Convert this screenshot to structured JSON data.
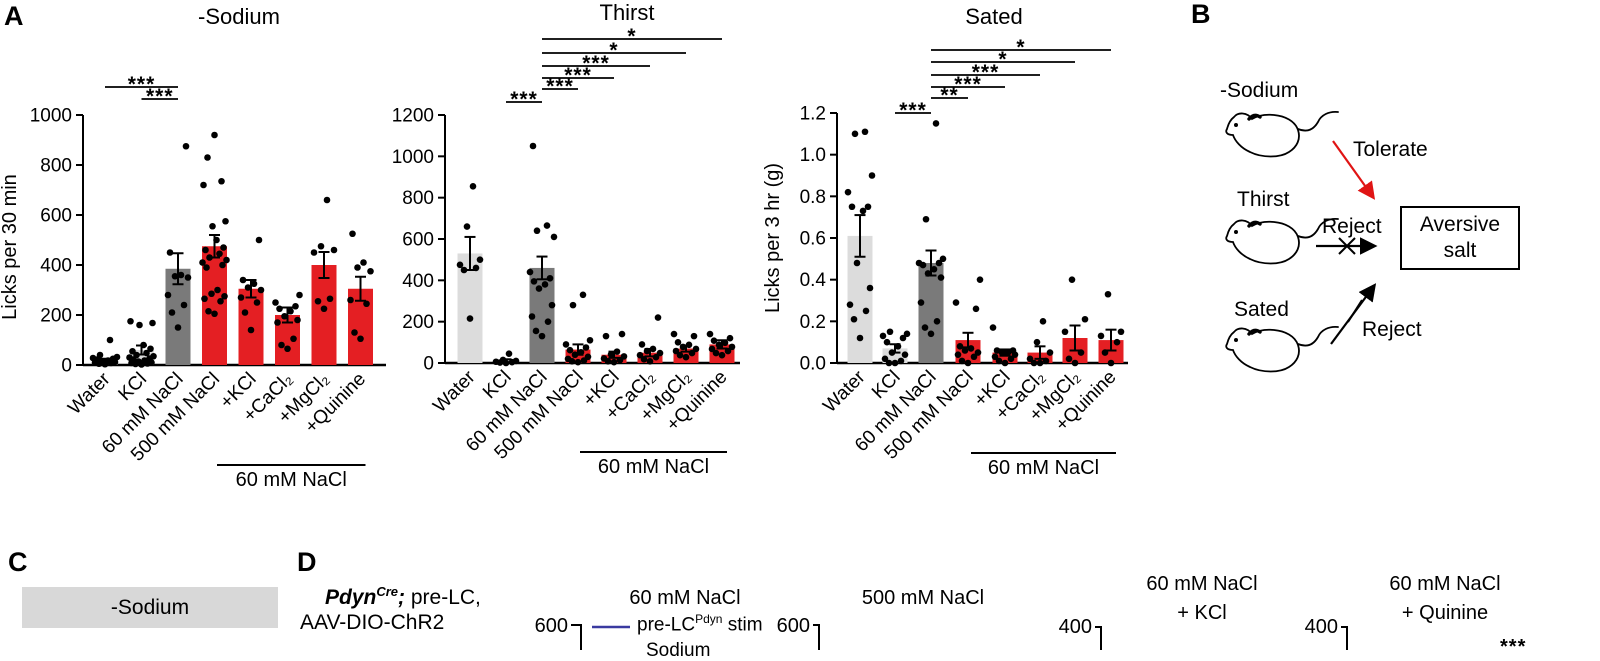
{
  "colors": {
    "red_bar": "#e41f23",
    "dark_gray_bar": "#7a7a7a",
    "light_gray_bar": "#dcdcdc",
    "panel_c_box": "#d8d8d8",
    "legend_blue": "#3a3aa0",
    "arrow_red": "#e01414",
    "black": "#000000"
  },
  "panel_a": {
    "label": "A"
  },
  "chart_data": [
    {
      "id": "sodium",
      "type": "bar",
      "title": "-Sodium",
      "ylabel": "Licks per 30 min",
      "ylim": [
        0,
        1000
      ],
      "yticks": [
        0,
        200,
        400,
        600,
        800,
        1000
      ],
      "ytick_labels": [
        "0",
        "200",
        "400",
        "600",
        "800",
        "1000"
      ],
      "categories": [
        "Water",
        "KCl",
        "60 mM NaCl",
        "500 mM NaCl",
        "+KCl",
        "+CaCl₂",
        "+MgCl₂",
        "+Quinine"
      ],
      "values": [
        15,
        60,
        385,
        475,
        305,
        200,
        400,
        305
      ],
      "errors": [
        10,
        18,
        62,
        45,
        35,
        30,
        52,
        48
      ],
      "bar_colors": [
        "#dcdcdc",
        "#dcdcdc",
        "#7a7a7a",
        "#e41f23",
        "#e41f23",
        "#e41f23",
        "#e41f23",
        "#e41f23"
      ],
      "points": [
        [
          3,
          5,
          8,
          10,
          12,
          15,
          18,
          22,
          25,
          28,
          32,
          40,
          100
        ],
        [
          2,
          4,
          6,
          8,
          10,
          14,
          18,
          22,
          26,
          30,
          35,
          40,
          48,
          55,
          65,
          80,
          160,
          168,
          175
        ],
        [
          150,
          210,
          240,
          280,
          350,
          355,
          360,
          450,
          875
        ],
        [
          205,
          215,
          255,
          265,
          275,
          285,
          300,
          390,
          400,
          410,
          420,
          430,
          445,
          460,
          470,
          500,
          555,
          575,
          720,
          735,
          830,
          920
        ],
        [
          140,
          210,
          250,
          270,
          300,
          310,
          325,
          340,
          500
        ],
        [
          65,
          80,
          105,
          170,
          180,
          195,
          215,
          225,
          235,
          250,
          280
        ],
        [
          225,
          255,
          265,
          450,
          460,
          475,
          660
        ],
        [
          105,
          130,
          245,
          260,
          375,
          390,
          410,
          525
        ]
      ],
      "significance": [
        {
          "from": 0,
          "to": 2,
          "label": "***"
        },
        {
          "from": 1,
          "to": 2,
          "label": "***"
        }
      ],
      "group_bracket": {
        "from": 4,
        "to": 7,
        "label": "60 mM NaCl"
      }
    },
    {
      "id": "thirst",
      "type": "bar",
      "title": "Thirst",
      "ylabel": "",
      "ylim": [
        0,
        1200
      ],
      "yticks": [
        0,
        200,
        400,
        600,
        800,
        1000,
        1200
      ],
      "ytick_labels": [
        "0",
        "200",
        "400",
        "600",
        "800",
        "1000",
        "1200"
      ],
      "categories": [
        "Water",
        "KCl",
        "60 mM NaCl",
        "500 mM NaCl",
        "+KCl",
        "+CaCl₂",
        "+MgCl₂",
        "+Quinine"
      ],
      "values": [
        530,
        10,
        460,
        65,
        40,
        50,
        70,
        90
      ],
      "errors": [
        80,
        8,
        55,
        25,
        15,
        18,
        15,
        20
      ],
      "bar_colors": [
        "#dcdcdc",
        "#dcdcdc",
        "#7a7a7a",
        "#e41f23",
        "#e41f23",
        "#e41f23",
        "#e41f23",
        "#e41f23"
      ],
      "points": [
        [
          215,
          450,
          460,
          475,
          500,
          660,
          855
        ],
        [
          0,
          2,
          4,
          6,
          10,
          15,
          45
        ],
        [
          130,
          155,
          200,
          225,
          280,
          360,
          380,
          395,
          410,
          440,
          610,
          640,
          665,
          1050
        ],
        [
          4,
          8,
          12,
          20,
          30,
          40,
          52,
          62,
          75,
          90,
          110,
          280,
          330
        ],
        [
          4,
          8,
          14,
          22,
          32,
          42,
          55,
          130,
          140
        ],
        [
          8,
          18,
          28,
          38,
          48,
          58,
          68,
          90,
          220
        ],
        [
          28,
          38,
          48,
          58,
          68,
          78,
          88,
          100,
          130,
          140
        ],
        [
          38,
          48,
          58,
          68,
          78,
          88,
          98,
          108,
          120,
          140
        ]
      ],
      "significance": [
        {
          "from": 1,
          "to": 2,
          "label": "***"
        },
        {
          "from": 2,
          "to": 3,
          "label": "***"
        },
        {
          "from": 2,
          "to": 4,
          "label": "***"
        },
        {
          "from": 2,
          "to": 5,
          "label": "***"
        },
        {
          "from": 2,
          "to": 6,
          "label": "*"
        },
        {
          "from": 2,
          "to": 7,
          "label": "*"
        }
      ],
      "group_bracket": {
        "from": 4,
        "to": 7,
        "label": "60 mM NaCl"
      }
    },
    {
      "id": "sated",
      "type": "bar",
      "title": "Sated",
      "ylabel": "Licks per 3 hr (g)",
      "ylim": [
        0,
        1.2
      ],
      "yticks": [
        0,
        0.2,
        0.4,
        0.6,
        0.8,
        1.0,
        1.2
      ],
      "ytick_labels": [
        "0.0",
        "0.2",
        "0.4",
        "0.6",
        "0.8",
        "1.0",
        "1.2"
      ],
      "categories": [
        "Water",
        "KCl",
        "60 mM NaCl",
        "500 mM NaCl",
        "+KCl",
        "+CaCl₂",
        "+MgCl₂",
        "+Quinine"
      ],
      "values": [
        0.61,
        0.07,
        0.48,
        0.11,
        0.05,
        0.05,
        0.12,
        0.11
      ],
      "errors": [
        0.1,
        0.02,
        0.06,
        0.035,
        0.015,
        0.03,
        0.06,
        0.05
      ],
      "bar_colors": [
        "#dcdcdc",
        "#dcdcdc",
        "#7a7a7a",
        "#e41f23",
        "#e41f23",
        "#e41f23",
        "#e41f23",
        "#e41f23"
      ],
      "points": [
        [
          0.12,
          0.21,
          0.25,
          0.28,
          0.36,
          0.48,
          0.73,
          0.75,
          0.75,
          0.82,
          0.9,
          1.1,
          1.11
        ],
        [
          0.0,
          0.0,
          0.01,
          0.02,
          0.04,
          0.05,
          0.08,
          0.1,
          0.12,
          0.13,
          0.14,
          0.15
        ],
        [
          0.14,
          0.17,
          0.2,
          0.29,
          0.41,
          0.43,
          0.45,
          0.47,
          0.48,
          0.48,
          0.5,
          0.69,
          1.15
        ],
        [
          0.0,
          0.01,
          0.03,
          0.04,
          0.05,
          0.06,
          0.07,
          0.08,
          0.26,
          0.29,
          0.4
        ],
        [
          0.0,
          0.01,
          0.02,
          0.03,
          0.04,
          0.05,
          0.05,
          0.06,
          0.06,
          0.17
        ],
        [
          0.0,
          0.0,
          0.01,
          0.02,
          0.05,
          0.1,
          0.2
        ],
        [
          0.0,
          0.02,
          0.05,
          0.15,
          0.21,
          0.4
        ],
        [
          0.0,
          0.05,
          0.1,
          0.13,
          0.15,
          0.33
        ]
      ],
      "significance": [
        {
          "from": 1,
          "to": 2,
          "label": "***"
        },
        {
          "from": 2,
          "to": 3,
          "label": "**"
        },
        {
          "from": 2,
          "to": 4,
          "label": "***"
        },
        {
          "from": 2,
          "to": 5,
          "label": "***"
        },
        {
          "from": 2,
          "to": 6,
          "label": "*"
        },
        {
          "from": 2,
          "to": 7,
          "label": "*"
        }
      ],
      "group_bracket": {
        "from": 4,
        "to": 7,
        "label": "60 mM NaCl"
      }
    }
  ],
  "panel_b": {
    "label": "B",
    "rows": [
      {
        "state": "-Sodium",
        "action": "Tolerate"
      },
      {
        "state": "Thirst",
        "action": "Reject"
      },
      {
        "state": "Sated",
        "action": "Reject"
      }
    ],
    "box_line1": "Aversive",
    "box_line2": "salt"
  },
  "panel_c": {
    "label": "C",
    "box_label": "-Sodium"
  },
  "panel_d": {
    "label": "D",
    "genotype_gene": "Pdyn",
    "genotype_sup": "Cre",
    "genotype_semi": ";",
    "genotype_rest": " pre-LC,",
    "genotype_line2": "AAV-DIO-ChR2",
    "legend_pre": "pre-LC",
    "legend_sup": "Pdyn",
    "legend_post": " stim",
    "legend_line2": "Sodium",
    "partial_sig": "***",
    "mini_charts": [
      {
        "ymax": "600",
        "title_lines": [
          "60 mM NaCl",
          ""
        ]
      },
      {
        "ymax": "600",
        "title_lines": [
          "500 mM NaCl",
          ""
        ]
      },
      {
        "ymax": "400",
        "title_lines": [
          "60 mM NaCl",
          "+ KCl"
        ]
      },
      {
        "ymax": "400",
        "title_lines": [
          "60 mM NaCl",
          "+ Quinine"
        ]
      }
    ]
  }
}
